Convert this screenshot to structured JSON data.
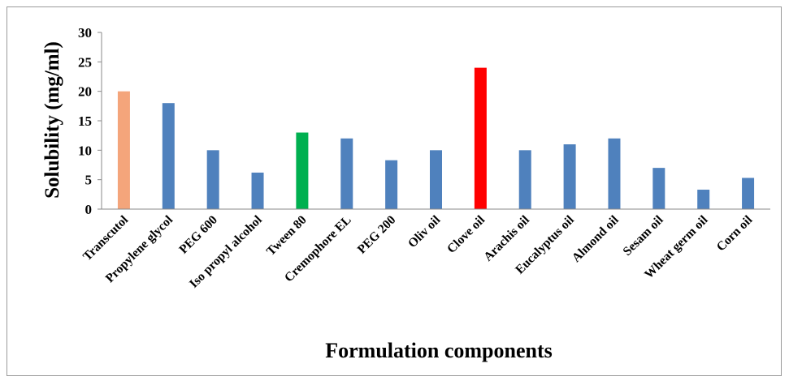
{
  "chart_data": {
    "type": "bar",
    "title": "",
    "xlabel": "Formulation components",
    "ylabel": "Solubility (mg/ml)",
    "ylim": [
      0,
      30
    ],
    "yticks": [
      0,
      5,
      10,
      15,
      20,
      25,
      30
    ],
    "grid": false,
    "legend": "none",
    "categories": [
      "Transcutol",
      "Propylene glycol",
      "PEG 600",
      "Iso propyl alcohol",
      "Tween 80",
      "Cremophore EL",
      "PEG 200",
      "Oliv oil",
      "Clove oil",
      "Arachis oil",
      "Eucalyptus oil",
      "Almond oil",
      "Sesam oil",
      "Wheat germ oil",
      "Corn oil"
    ],
    "values": [
      20,
      18,
      10,
      6.2,
      13,
      12,
      8.3,
      10,
      24,
      10,
      11,
      12,
      7,
      3.3,
      5.3
    ],
    "colors": [
      "#f4a57b",
      "#4f81bd",
      "#4f81bd",
      "#4f81bd",
      "#00b050",
      "#4f81bd",
      "#4f81bd",
      "#4f81bd",
      "#ff0000",
      "#4f81bd",
      "#4f81bd",
      "#4f81bd",
      "#4f81bd",
      "#4f81bd",
      "#4f81bd"
    ],
    "axis_color": "#888888"
  }
}
